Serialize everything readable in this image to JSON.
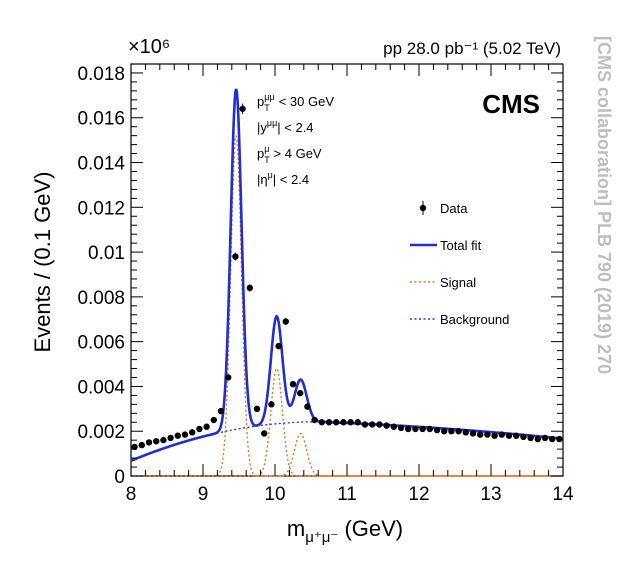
{
  "header": {
    "exponent_label": "×10⁶",
    "lumi_label": "pp 28.0 pb⁻¹ (5.02 TeV)",
    "experiment": "CMS",
    "side_citation": "[CMS collaboration] PLB 790 (2019) 270"
  },
  "cuts": [
    {
      "symbol": "p",
      "sup": "μμ",
      "sub": "T",
      "rest": " < 30 GeV"
    },
    {
      "symbol": "|y",
      "sup": "μμ",
      "sub": "",
      "rest": "| < 2.4"
    },
    {
      "symbol": "p",
      "sup": "μ",
      "sub": "T",
      "rest": " > 4 GeV"
    },
    {
      "symbol": "|η",
      "sup": "μ",
      "sub": "",
      "rest": "| < 2.4"
    }
  ],
  "chart_data": {
    "type": "line",
    "title": "",
    "xlabel": "m",
    "xlabel_sub": "μ⁺μ⁻",
    "xlabel_unit": " (GeV)",
    "ylabel": "Events / (0.1 GeV)",
    "xlim": [
      8,
      14
    ],
    "ylim": [
      0,
      0.0184
    ],
    "x_ticks": [
      8,
      9,
      10,
      11,
      12,
      13,
      14
    ],
    "x_tick_labels": [
      "8",
      "9",
      "10",
      "11",
      "12",
      "13",
      "14"
    ],
    "y_ticks": [
      0,
      0.002,
      0.004,
      0.006,
      0.008,
      0.01,
      0.012,
      0.014,
      0.016,
      0.018
    ],
    "y_tick_labels": [
      "0",
      "0.002",
      "0.004",
      "0.006",
      "0.008",
      "0.01",
      "0.012",
      "0.014",
      "0.016",
      "0.018"
    ],
    "y_scale_factor": "×10⁶",
    "grid": false,
    "legend_position": "right",
    "legend": [
      {
        "label": "Data",
        "style": "points",
        "color": "#000000"
      },
      {
        "label": "Total fit",
        "style": "solid",
        "color": "#1f2fd0"
      },
      {
        "label": "Signal",
        "style": "dotted",
        "color": "#e8741e"
      },
      {
        "label": "Background",
        "style": "dotted",
        "color": "#2a3ad6"
      }
    ],
    "data_points": {
      "x": [
        8.05,
        8.15,
        8.25,
        8.35,
        8.45,
        8.55,
        8.65,
        8.75,
        8.85,
        8.95,
        9.05,
        9.15,
        9.25,
        9.35,
        9.45,
        9.55,
        9.65,
        9.75,
        9.85,
        9.95,
        10.05,
        10.15,
        10.25,
        10.35,
        10.45,
        10.55,
        10.65,
        10.75,
        10.85,
        10.95,
        11.05,
        11.15,
        11.25,
        11.35,
        11.45,
        11.55,
        11.65,
        11.75,
        11.85,
        11.95,
        12.05,
        12.15,
        12.25,
        12.35,
        12.45,
        12.55,
        12.65,
        12.75,
        12.85,
        12.95,
        13.05,
        13.15,
        13.25,
        13.35,
        13.45,
        13.55,
        13.65,
        13.75,
        13.85,
        13.95
      ],
      "y": [
        0.0013,
        0.00138,
        0.0015,
        0.00155,
        0.0016,
        0.0017,
        0.0018,
        0.00185,
        0.00195,
        0.0021,
        0.0022,
        0.0025,
        0.0029,
        0.0044,
        0.0098,
        0.0164,
        0.0084,
        0.003,
        0.0019,
        0.0032,
        0.0058,
        0.0069,
        0.0041,
        0.0037,
        0.0031,
        0.0025,
        0.0024,
        0.0024,
        0.0024,
        0.0024,
        0.0024,
        0.0024,
        0.0023,
        0.0023,
        0.0023,
        0.00225,
        0.0022,
        0.00215,
        0.0021,
        0.0021,
        0.0021,
        0.0021,
        0.00205,
        0.002,
        0.002,
        0.002,
        0.00195,
        0.0019,
        0.00185,
        0.00185,
        0.0018,
        0.00185,
        0.0018,
        0.0018,
        0.00175,
        0.0017,
        0.00165,
        0.0017,
        0.00165,
        0.00165
      ]
    },
    "fit_model": {
      "background": {
        "a": 0.00242,
        "x0": 10.6,
        "c": 0.0003,
        "d": 4.5e-06,
        "x_ref": 14,
        "e": 3e-06
      },
      "peaks": [
        {
          "mass": 9.46,
          "amplitude": 0.0152,
          "sigma": 0.075
        },
        {
          "mass": 10.023,
          "amplitude": 0.0048,
          "sigma": 0.08
        },
        {
          "mass": 10.355,
          "amplitude": 0.0019,
          "sigma": 0.085
        }
      ]
    }
  }
}
